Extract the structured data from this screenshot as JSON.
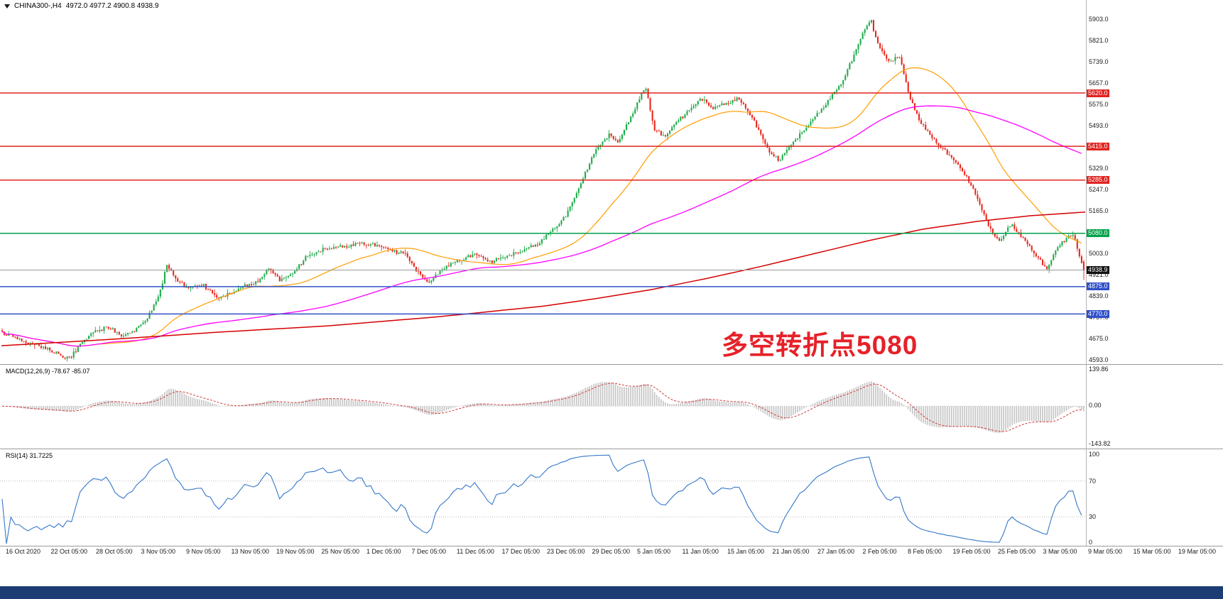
{
  "header": {
    "symbol_label": "CHINA300-,H4",
    "ohlc_label": "4972.0 4977.2 4900.8 4938.9"
  },
  "annotation": {
    "text": "多空转折点5080",
    "color": "#e62129"
  },
  "main_axis": {
    "labels": [
      "5903.0",
      "5821.0",
      "5739.0",
      "5657.0",
      "5575.0",
      "5493.0",
      "5411.0",
      "5329.0",
      "5247.0",
      "5165.0",
      "5083.0",
      "5003.0",
      "4921.0",
      "4839.0",
      "4757.0",
      "4675.0",
      "4593.0"
    ]
  },
  "time_axis": {
    "labels": [
      "16 Oct 2020",
      "22 Oct 05:00",
      "28 Oct 05:00",
      "3 Nov 05:00",
      "9 Nov 05:00",
      "13 Nov 05:00",
      "19 Nov 05:00",
      "25 Nov 05:00",
      "1 Dec 05:00",
      "7 Dec 05:00",
      "11 Dec 05:00",
      "17 Dec 05:00",
      "23 Dec 05:00",
      "29 Dec 05:00",
      "5 Jan 05:00",
      "11 Jan 05:00",
      "15 Jan 05:00",
      "21 Jan 05:00",
      "27 Jan 05:00",
      "2 Feb 05:00",
      "8 Feb 05:00",
      "19 Feb 05:00",
      "25 Feb 05:00",
      "3 Mar 05:00",
      "9 Mar 05:00",
      "15 Mar 05:00",
      "19 Mar 05:00"
    ]
  },
  "macd_panel": {
    "label": "MACD(12,26,9) -78.67 -85.07",
    "axis": [
      "139.86",
      "0.00",
      "-143.82"
    ],
    "max": 139.86,
    "min": -143.82
  },
  "rsi_panel": {
    "label": "RSI(14) 31.7225",
    "axis": [
      "100",
      "70",
      "30",
      "0"
    ],
    "levels": [
      70,
      30
    ]
  },
  "bottom_bar": {
    "color": "#1c3d74"
  },
  "chart_data": {
    "type": "candlestick",
    "symbol": "CHINA300-",
    "timeframe": "H4",
    "title": "CHINA300-,H4 4972.0 4977.2 4900.8 4938.9",
    "current_bar": {
      "open": 4972.0,
      "high": 4977.2,
      "low": 4900.8,
      "close": 4938.9
    },
    "x_range": [
      "16 Oct 2020",
      "19 Mar 05:00"
    ],
    "y_axis": {
      "min": 4593,
      "max": 5903,
      "tick_step": 82
    },
    "bars_rendered": 500,
    "colors": {
      "up": "#1fab4b",
      "down": "#e8281e",
      "macd_hist": "#c6c6c6",
      "macd_signal": "#d23b3b",
      "rsi": "#3577c8",
      "current_price_line": "#999999",
      "current_price_badge": "#111111"
    },
    "price_path": [
      [
        0,
        4700
      ],
      [
        0.02,
        4660
      ],
      [
        0.036,
        4645
      ],
      [
        0.052,
        4615
      ],
      [
        0.062,
        4600
      ],
      [
        0.072,
        4650
      ],
      [
        0.085,
        4700
      ],
      [
        0.098,
        4722
      ],
      [
        0.11,
        4680
      ],
      [
        0.121,
        4700
      ],
      [
        0.134,
        4748
      ],
      [
        0.147,
        4870
      ],
      [
        0.152,
        4958
      ],
      [
        0.162,
        4900
      ],
      [
        0.171,
        4868
      ],
      [
        0.186,
        4880
      ],
      [
        0.199,
        4830
      ],
      [
        0.212,
        4850
      ],
      [
        0.225,
        4880
      ],
      [
        0.239,
        4902
      ],
      [
        0.247,
        4950
      ],
      [
        0.256,
        4900
      ],
      [
        0.268,
        4920
      ],
      [
        0.281,
        4988
      ],
      [
        0.297,
        5018
      ],
      [
        0.314,
        5030
      ],
      [
        0.33,
        5042
      ],
      [
        0.346,
        5034
      ],
      [
        0.361,
        5010
      ],
      [
        0.373,
        5000
      ],
      [
        0.384,
        4930
      ],
      [
        0.395,
        4888
      ],
      [
        0.407,
        4948
      ],
      [
        0.422,
        4975
      ],
      [
        0.437,
        5000
      ],
      [
        0.451,
        4968
      ],
      [
        0.465,
        4990
      ],
      [
        0.48,
        5010
      ],
      [
        0.495,
        5042
      ],
      [
        0.508,
        5090
      ],
      [
        0.52,
        5140
      ],
      [
        0.531,
        5230
      ],
      [
        0.541,
        5330
      ],
      [
        0.55,
        5408
      ],
      [
        0.561,
        5458
      ],
      [
        0.57,
        5430
      ],
      [
        0.58,
        5520
      ],
      [
        0.59,
        5608
      ],
      [
        0.595,
        5640
      ],
      [
        0.603,
        5480
      ],
      [
        0.613,
        5450
      ],
      [
        0.624,
        5510
      ],
      [
        0.635,
        5550
      ],
      [
        0.646,
        5600
      ],
      [
        0.657,
        5560
      ],
      [
        0.668,
        5580
      ],
      [
        0.68,
        5600
      ],
      [
        0.69,
        5550
      ],
      [
        0.699,
        5480
      ],
      [
        0.709,
        5390
      ],
      [
        0.719,
        5360
      ],
      [
        0.729,
        5420
      ],
      [
        0.74,
        5470
      ],
      [
        0.752,
        5530
      ],
      [
        0.763,
        5590
      ],
      [
        0.775,
        5650
      ],
      [
        0.786,
        5750
      ],
      [
        0.796,
        5850
      ],
      [
        0.803,
        5902
      ],
      [
        0.81,
        5800
      ],
      [
        0.82,
        5740
      ],
      [
        0.83,
        5760
      ],
      [
        0.839,
        5600
      ],
      [
        0.848,
        5520
      ],
      [
        0.859,
        5450
      ],
      [
        0.871,
        5400
      ],
      [
        0.882,
        5350
      ],
      [
        0.894,
        5280
      ],
      [
        0.905,
        5180
      ],
      [
        0.915,
        5080
      ],
      [
        0.923,
        5050
      ],
      [
        0.933,
        5120
      ],
      [
        0.944,
        5060
      ],
      [
        0.955,
        5000
      ],
      [
        0.966,
        4940
      ],
      [
        0.975,
        5020
      ],
      [
        0.984,
        5062
      ],
      [
        0.991,
        5072
      ],
      [
        0.996,
        4990
      ],
      [
        1,
        4939
      ]
    ],
    "moving_averages": [
      {
        "name": "fast",
        "type": "sma",
        "period": 45,
        "color": "#ff9d00",
        "source": "computed"
      },
      {
        "name": "medium",
        "type": "sma",
        "period": 150,
        "color": "#ff00ff",
        "source": "computed"
      },
      {
        "name": "slow",
        "type": "trend",
        "color": "#d40000",
        "source": "path",
        "path": [
          [
            0,
            4648
          ],
          [
            0.1,
            4672
          ],
          [
            0.2,
            4700
          ],
          [
            0.3,
            4724
          ],
          [
            0.4,
            4758
          ],
          [
            0.5,
            4800
          ],
          [
            0.55,
            4830
          ],
          [
            0.6,
            4864
          ],
          [
            0.65,
            4906
          ],
          [
            0.7,
            4952
          ],
          [
            0.75,
            5002
          ],
          [
            0.8,
            5052
          ],
          [
            0.85,
            5096
          ],
          [
            0.9,
            5126
          ],
          [
            0.95,
            5148
          ],
          [
            1,
            5162
          ]
        ]
      }
    ],
    "horizontal_lines": [
      {
        "price": 5620.0,
        "color": "#e02421",
        "kind": "resistance"
      },
      {
        "price": 5415.0,
        "color": "#e02421",
        "kind": "resistance"
      },
      {
        "price": 5285.0,
        "color": "#e02421",
        "kind": "resistance"
      },
      {
        "price": 5080.0,
        "color": "#00a24a",
        "kind": "pivot"
      },
      {
        "price": 4875.0,
        "color": "#3050c8",
        "kind": "support"
      },
      {
        "price": 4770.0,
        "color": "#3050c8",
        "kind": "support"
      }
    ],
    "indicators": {
      "macd": {
        "fast": 12,
        "slow": 26,
        "signal_period": 9,
        "last_main": -78.67,
        "last_signal": -85.07
      },
      "rsi": {
        "period": 14,
        "last": 31.7225
      }
    }
  }
}
